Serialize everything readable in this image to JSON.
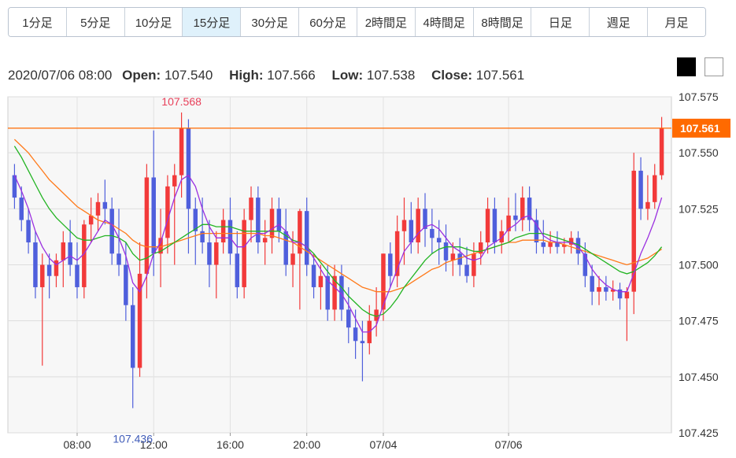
{
  "tabs": [
    {
      "label": "1分足",
      "active": false
    },
    {
      "label": "5分足",
      "active": false
    },
    {
      "label": "10分足",
      "active": false
    },
    {
      "label": "15分足",
      "active": true
    },
    {
      "label": "30分足",
      "active": false
    },
    {
      "label": "60分足",
      "active": false
    },
    {
      "label": "2時間足",
      "active": false
    },
    {
      "label": "4時間足",
      "active": false
    },
    {
      "label": "8時間足",
      "active": false
    },
    {
      "label": "日足",
      "active": false
    },
    {
      "label": "週足",
      "active": false
    },
    {
      "label": "月足",
      "active": false
    }
  ],
  "header": {
    "datetime": "2020/07/06 08:00",
    "open_label": "Open:",
    "open": "107.540",
    "high_label": "High:",
    "high": "107.566",
    "low_label": "Low:",
    "low": "107.538",
    "close_label": "Close:",
    "close": "107.561"
  },
  "colors": {
    "up": "#f23a3a",
    "down": "#4f5fdc",
    "ma_short": "#9b30e0",
    "ma_mid": "#22b422",
    "ma_long": "#ff7a1a",
    "current": "#ff6a00",
    "max_label": "#e8405a",
    "min_label": "#3f5bb8"
  },
  "chart_data": {
    "type": "candlestick",
    "ylim": [
      107.425,
      107.575
    ],
    "yticks": [
      "107.575",
      "107.550",
      "107.525",
      "107.500",
      "107.475",
      "107.450",
      "107.425"
    ],
    "xticks": [
      "08:00",
      "12:00",
      "16:00",
      "20:00",
      "07/04",
      "07/06"
    ],
    "current_price": "107.561",
    "max_label": "107.568",
    "min_label": "107.436",
    "candles": [
      [
        107.54,
        107.545,
        107.525,
        107.53
      ],
      [
        107.53,
        107.535,
        107.515,
        107.52
      ],
      [
        107.52,
        107.525,
        107.505,
        107.51
      ],
      [
        107.51,
        107.515,
        107.485,
        107.49
      ],
      [
        107.49,
        107.505,
        107.455,
        107.5
      ],
      [
        107.5,
        107.505,
        107.485,
        107.495
      ],
      [
        107.495,
        107.505,
        107.49,
        107.502
      ],
      [
        107.502,
        107.515,
        107.49,
        107.51
      ],
      [
        107.51,
        107.52,
        107.495,
        107.5
      ],
      [
        107.5,
        107.51,
        107.485,
        107.49
      ],
      [
        107.49,
        107.52,
        107.485,
        107.518
      ],
      [
        107.518,
        107.53,
        107.51,
        107.522
      ],
      [
        107.522,
        107.532,
        107.515,
        107.528
      ],
      [
        107.528,
        107.538,
        107.518,
        107.525
      ],
      [
        107.525,
        107.53,
        107.5,
        107.505
      ],
      [
        107.505,
        107.525,
        107.495,
        107.5
      ],
      [
        107.5,
        107.51,
        107.475,
        107.482
      ],
      [
        107.482,
        107.49,
        107.436,
        107.454
      ],
      [
        107.454,
        107.51,
        107.45,
        107.496
      ],
      [
        107.496,
        107.545,
        107.485,
        107.539
      ],
      [
        107.539,
        107.56,
        107.495,
        107.505
      ],
      [
        107.505,
        107.525,
        107.49,
        107.512
      ],
      [
        107.512,
        107.54,
        107.505,
        107.535
      ],
      [
        107.535,
        107.545,
        107.5,
        107.54
      ],
      [
        107.54,
        107.568,
        107.53,
        107.561
      ],
      [
        107.561,
        107.565,
        107.505,
        107.525
      ],
      [
        107.525,
        107.53,
        107.5,
        107.515
      ],
      [
        107.515,
        107.53,
        107.505,
        107.51
      ],
      [
        107.51,
        107.52,
        107.49,
        107.5
      ],
      [
        107.5,
        107.515,
        107.485,
        107.51
      ],
      [
        107.51,
        107.525,
        107.505,
        107.52
      ],
      [
        107.52,
        107.53,
        107.5,
        107.505
      ],
      [
        107.505,
        107.515,
        107.485,
        107.49
      ],
      [
        107.49,
        107.525,
        107.485,
        107.52
      ],
      [
        107.52,
        107.535,
        107.51,
        107.53
      ],
      [
        107.53,
        107.535,
        107.505,
        107.51
      ],
      [
        107.51,
        107.52,
        107.5,
        107.512
      ],
      [
        107.512,
        107.53,
        107.505,
        107.525
      ],
      [
        107.525,
        107.53,
        107.51,
        107.515
      ],
      [
        107.515,
        107.525,
        107.495,
        107.5
      ],
      [
        107.5,
        107.515,
        107.49,
        107.505
      ],
      [
        107.505,
        107.525,
        107.48,
        107.524
      ],
      [
        107.524,
        107.53,
        107.495,
        107.5
      ],
      [
        107.5,
        107.505,
        107.485,
        107.49
      ],
      [
        107.49,
        107.5,
        107.48,
        107.495
      ],
      [
        107.495,
        107.5,
        107.475,
        107.48
      ],
      [
        107.48,
        107.5,
        107.475,
        107.495
      ],
      [
        107.495,
        107.5,
        107.475,
        107.48
      ],
      [
        107.48,
        107.49,
        107.465,
        107.472
      ],
      [
        107.472,
        107.48,
        107.458,
        107.466
      ],
      [
        107.466,
        107.475,
        107.448,
        107.465
      ],
      [
        107.465,
        107.482,
        107.46,
        107.475
      ],
      [
        107.475,
        107.49,
        107.468,
        107.48
      ],
      [
        107.48,
        107.505,
        107.475,
        107.505
      ],
      [
        107.505,
        107.51,
        107.49,
        107.495
      ],
      [
        107.495,
        107.522,
        107.49,
        107.515
      ],
      [
        107.515,
        107.53,
        107.5,
        107.52
      ],
      [
        107.52,
        107.528,
        107.505,
        107.51
      ],
      [
        107.51,
        107.53,
        107.505,
        107.525
      ],
      [
        107.525,
        107.532,
        107.508,
        107.516
      ],
      [
        107.516,
        107.525,
        107.505,
        107.512
      ],
      [
        107.512,
        107.52,
        107.5,
        107.51
      ],
      [
        107.51,
        107.518,
        107.497,
        107.502
      ],
      [
        107.502,
        107.51,
        107.495,
        107.505
      ],
      [
        107.505,
        107.512,
        107.495,
        107.5
      ],
      [
        107.5,
        107.508,
        107.492,
        107.495
      ],
      [
        107.495,
        107.51,
        107.49,
        107.505
      ],
      [
        107.505,
        107.515,
        107.5,
        107.51
      ],
      [
        107.51,
        107.53,
        107.505,
        107.525
      ],
      [
        107.525,
        107.53,
        107.505,
        107.51
      ],
      [
        107.51,
        107.52,
        107.505,
        107.515
      ],
      [
        107.515,
        107.53,
        107.51,
        107.522
      ],
      [
        107.522,
        107.532,
        107.515,
        107.52
      ],
      [
        107.52,
        107.535,
        107.515,
        107.53
      ],
      [
        107.53,
        107.535,
        107.515,
        107.52
      ],
      [
        107.52,
        107.525,
        107.505,
        107.51
      ],
      [
        107.51,
        107.52,
        107.505,
        107.508
      ],
      [
        107.508,
        107.515,
        107.505,
        107.51
      ],
      [
        107.51,
        107.515,
        107.505,
        107.508
      ],
      [
        107.508,
        107.512,
        107.505,
        107.509
      ],
      [
        107.509,
        107.515,
        107.505,
        107.512
      ],
      [
        107.512,
        107.515,
        107.5,
        107.505
      ],
      [
        107.505,
        107.51,
        107.49,
        107.495
      ],
      [
        107.495,
        107.5,
        107.482,
        107.488
      ],
      [
        107.488,
        107.495,
        107.482,
        107.49
      ],
      [
        107.49,
        107.495,
        107.484,
        107.488
      ],
      [
        107.488,
        107.493,
        107.484,
        107.489
      ],
      [
        107.489,
        107.492,
        107.48,
        107.485
      ],
      [
        107.485,
        107.49,
        107.466,
        107.488
      ],
      [
        107.488,
        107.55,
        107.478,
        107.542
      ],
      [
        107.542,
        107.548,
        107.52,
        107.525
      ],
      [
        107.525,
        107.54,
        107.52,
        107.528
      ],
      [
        107.528,
        107.545,
        107.525,
        107.54
      ],
      [
        107.54,
        107.566,
        107.538,
        107.561
      ]
    ],
    "ma_short": [
      107.54,
      107.533,
      107.525,
      107.515,
      107.508,
      107.503,
      107.5,
      107.502,
      107.504,
      107.502,
      107.505,
      107.51,
      107.515,
      107.52,
      107.518,
      107.512,
      107.504,
      107.492,
      107.488,
      107.495,
      107.505,
      107.51,
      107.52,
      107.53,
      107.538,
      107.54,
      107.535,
      107.525,
      107.517,
      107.512,
      107.512,
      107.512,
      107.508,
      107.508,
      107.512,
      107.514,
      107.514,
      107.516,
      107.518,
      107.515,
      107.51,
      107.51,
      107.508,
      107.503,
      107.498,
      107.493,
      107.49,
      107.487,
      107.482,
      107.476,
      107.47,
      107.47,
      107.473,
      107.482,
      107.49,
      107.498,
      107.506,
      107.51,
      107.514,
      107.517,
      107.518,
      107.516,
      107.512,
      107.508,
      107.506,
      107.503,
      107.502,
      107.503,
      107.508,
      107.51,
      107.512,
      107.516,
      107.518,
      107.521,
      107.522,
      107.518,
      107.513,
      107.511,
      107.51,
      107.51,
      107.51,
      107.508,
      107.504,
      107.498,
      107.494,
      107.491,
      107.489,
      107.488,
      107.488,
      107.496,
      107.505,
      107.512,
      107.52,
      107.53
    ],
    "ma_mid": [
      107.553,
      107.548,
      107.542,
      107.536,
      107.53,
      107.525,
      107.521,
      107.518,
      107.515,
      107.512,
      107.511,
      107.511,
      107.512,
      107.513,
      107.513,
      107.512,
      107.51,
      107.505,
      107.502,
      107.503,
      107.505,
      107.506,
      107.508,
      107.51,
      107.512,
      107.514,
      107.516,
      107.518,
      107.518,
      107.517,
      107.517,
      107.517,
      107.516,
      107.515,
      107.515,
      107.515,
      107.515,
      107.515,
      107.515,
      107.513,
      107.511,
      107.51,
      107.508,
      107.505,
      107.501,
      107.497,
      107.493,
      107.49,
      107.486,
      107.483,
      107.48,
      107.478,
      107.477,
      107.478,
      107.481,
      107.485,
      107.49,
      107.494,
      107.498,
      107.502,
      107.505,
      107.507,
      107.508,
      107.508,
      107.508,
      107.507,
      107.506,
      107.506,
      107.507,
      107.508,
      107.509,
      107.51,
      107.512,
      107.513,
      107.514,
      107.514,
      107.514,
      107.513,
      107.512,
      107.511,
      107.51,
      107.509,
      107.507,
      107.505,
      107.503,
      107.501,
      107.499,
      107.497,
      107.496,
      107.497,
      107.499,
      107.501,
      107.504,
      107.508
    ],
    "ma_long": [
      107.556,
      107.553,
      107.55,
      107.546,
      107.542,
      107.538,
      107.535,
      107.532,
      107.529,
      107.526,
      107.524,
      107.522,
      107.52,
      107.519,
      107.518,
      107.516,
      107.514,
      107.511,
      107.509,
      107.508,
      107.508,
      107.508,
      107.509,
      107.51,
      107.511,
      107.512,
      107.513,
      107.514,
      107.514,
      107.514,
      107.514,
      107.514,
      107.514,
      107.514,
      107.514,
      107.514,
      107.513,
      107.513,
      107.512,
      107.511,
      107.51,
      107.508,
      107.506,
      107.504,
      107.502,
      107.5,
      107.498,
      107.496,
      107.494,
      107.492,
      107.49,
      107.489,
      107.488,
      107.488,
      107.488,
      107.489,
      107.49,
      107.492,
      107.494,
      107.496,
      107.498,
      107.499,
      107.501,
      107.502,
      107.503,
      107.504,
      107.505,
      107.506,
      107.507,
      107.508,
      107.509,
      107.51,
      107.51,
      107.511,
      107.511,
      107.511,
      107.511,
      107.51,
      107.51,
      107.509,
      107.508,
      107.507,
      107.506,
      107.505,
      107.504,
      107.503,
      107.502,
      107.501,
      107.5,
      107.501,
      107.502,
      107.503,
      107.505,
      107.507
    ]
  }
}
